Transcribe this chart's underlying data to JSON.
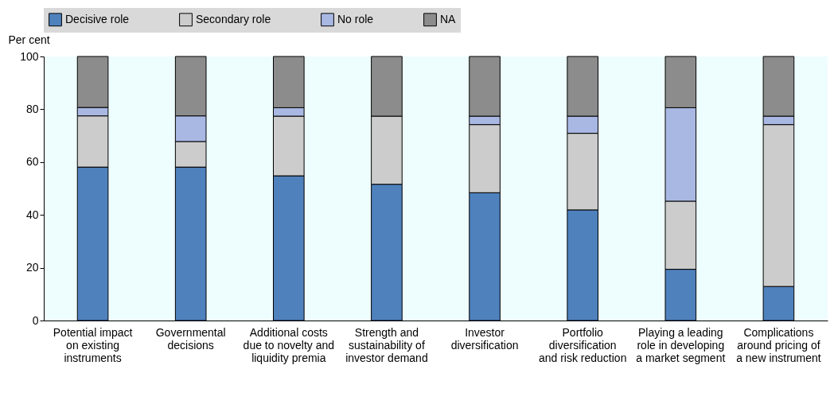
{
  "chart_data": {
    "type": "bar",
    "stacked": true,
    "ylabel": "Per cent",
    "categories": [
      "Potential impact on existing instruments",
      "Governmental decisions",
      "Additional costs due to novelty and liquidity premia",
      "Strength and sustainability of investor demand",
      "Investor diversification",
      "Portfolio diversification and risk reduction",
      "Playing a leading role in developing a market segment",
      "Complications around pricing of a new instrument"
    ],
    "series": [
      {
        "name": "Decisive role",
        "color": "#4f81bd",
        "values": [
          58.1,
          58.1,
          54.8,
          51.6,
          48.4,
          41.9,
          19.4,
          12.9
        ]
      },
      {
        "name": "Secondary role",
        "color": "#cccccc",
        "values": [
          19.4,
          9.7,
          22.6,
          25.8,
          25.8,
          29.0,
          25.8,
          61.3
        ]
      },
      {
        "name": "No role",
        "color": "#a9b8e3",
        "values": [
          3.2,
          9.7,
          3.2,
          0,
          3.2,
          6.5,
          35.4,
          3.2
        ]
      },
      {
        "name": "NA",
        "color": "#8c8c8c",
        "values": [
          19.3,
          22.5,
          19.4,
          22.6,
          22.6,
          22.6,
          19.4,
          22.6
        ]
      }
    ],
    "ylim": [
      0,
      100
    ],
    "yticks": [
      0,
      20,
      40,
      60,
      80,
      100
    ],
    "grid": false,
    "legend": "top"
  }
}
